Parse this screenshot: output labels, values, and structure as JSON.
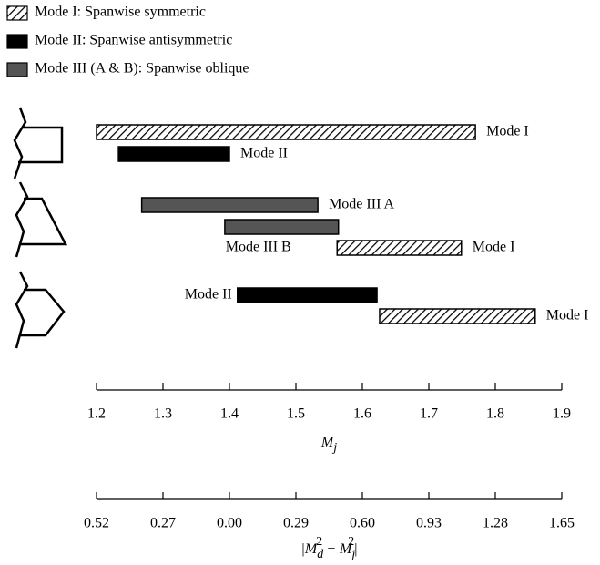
{
  "chart_data": {
    "type": "range-bar",
    "legend": [
      {
        "name": "Mode I: Spanwise symmetric",
        "style": "hatch"
      },
      {
        "name": "Mode II: Spanwise antisymmetric",
        "style": "solid",
        "color": "#000000"
      },
      {
        "name": "Mode III (A & B): Spanwise oblique",
        "style": "solid",
        "color": "#555555"
      }
    ],
    "groups": [
      {
        "bars": [
          {
            "label": "Mode I",
            "start": 1.2,
            "end": 1.77,
            "style": "hatch",
            "label_position": "right"
          },
          {
            "label": "Mode II",
            "start": 1.233,
            "end": 1.4,
            "style": "solid",
            "color": "#000000",
            "label_position": "right"
          }
        ]
      },
      {
        "bars": [
          {
            "label": "Mode III A",
            "start": 1.268,
            "end": 1.533,
            "style": "solid",
            "color": "#555555",
            "label_position": "right"
          },
          {
            "label": "Mode III B",
            "start": 1.393,
            "end": 1.564,
            "style": "solid",
            "color": "#555555",
            "label_position": "below"
          },
          {
            "label": "Mode I",
            "start": 1.562,
            "end": 1.749,
            "style": "hatch",
            "label_position": "right"
          }
        ]
      },
      {
        "bars": [
          {
            "label": "Mode II",
            "start": 1.412,
            "end": 1.622,
            "style": "solid",
            "color": "#000000",
            "label_position": "left"
          },
          {
            "label": "Mode I",
            "start": 1.626,
            "end": 1.86,
            "style": "hatch",
            "label_position": "right"
          }
        ]
      }
    ],
    "xlim": [
      1.2,
      1.9
    ],
    "xticks": [
      1.2,
      1.3,
      1.4,
      1.5,
      1.6,
      1.7,
      1.8,
      1.9
    ],
    "xlabel": [
      "M",
      "j"
    ],
    "x2ticks": [
      {
        "value": 1.2,
        "label": "0.52"
      },
      {
        "value": 1.3,
        "label": "0.27"
      },
      {
        "value": 1.4,
        "label": "0.00"
      },
      {
        "value": 1.5,
        "label": "0.29"
      },
      {
        "value": 1.6,
        "label": "0.60"
      },
      {
        "value": 1.7,
        "label": "0.93"
      },
      {
        "value": 1.8,
        "label": "1.28"
      },
      {
        "value": 1.9,
        "label": "1.65"
      }
    ],
    "x2label": [
      "|M",
      "d",
      "2",
      " − M",
      "j",
      "2",
      "|"
    ]
  }
}
